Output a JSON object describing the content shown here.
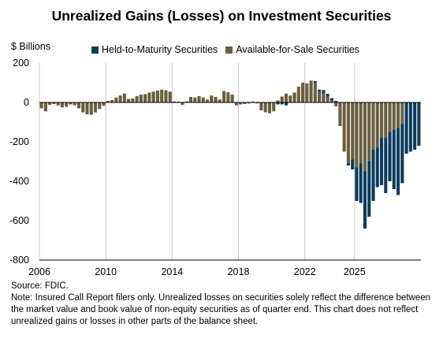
{
  "chart_data": {
    "type": "bar",
    "stacked": true,
    "title": "Unrealized Gains (Losses) on Investment Securities",
    "ylabel": "$ Billions",
    "ylim": [
      -800,
      200
    ],
    "yticks": [
      200,
      0,
      -200,
      -400,
      -600,
      -800
    ],
    "xticks": [
      "2006",
      "2010",
      "2014",
      "2018",
      "2022",
      "2025"
    ],
    "grid": "vertical",
    "legend_position": "top",
    "series": [
      {
        "name": "Held-to-Maturity Securities",
        "color": "#0b3c5d",
        "values": [
          0,
          0,
          0,
          0,
          0,
          0,
          0,
          0,
          0,
          0,
          0,
          0,
          -1,
          -2,
          -3,
          -2,
          0,
          0,
          0,
          0,
          0,
          0,
          0,
          0,
          0,
          0,
          0,
          0,
          0,
          0,
          0,
          0,
          0,
          0,
          0,
          0,
          0,
          0,
          0,
          0,
          0,
          0,
          0,
          0,
          0,
          0,
          0,
          0,
          0,
          0,
          0,
          0,
          0,
          0,
          0,
          0,
          0,
          -10,
          -10,
          -15,
          0,
          0,
          0,
          0,
          2,
          5,
          8,
          10,
          18,
          14,
          12,
          8,
          0,
          0,
          -10,
          -50,
          -170,
          -200,
          -290,
          -280,
          -260,
          -200,
          -240,
          -280,
          -250,
          -300,
          -340,
          -300,
          -260,
          -250,
          -240,
          -220
        ]
      },
      {
        "name": "Available-for-Sale Securities",
        "color": "#6b5e3e",
        "values": [
          -30,
          -45,
          -12,
          -8,
          -15,
          -25,
          -22,
          -10,
          -15,
          -30,
          -50,
          -60,
          -60,
          -48,
          -30,
          -15,
          8,
          12,
          25,
          35,
          45,
          18,
          20,
          32,
          40,
          42,
          50,
          55,
          60,
          65,
          62,
          55,
          5,
          5,
          -12,
          5,
          28,
          25,
          32,
          25,
          15,
          35,
          28,
          15,
          58,
          52,
          40,
          -15,
          -10,
          -8,
          -5,
          5,
          -5,
          -40,
          -50,
          -55,
          -45,
          10,
          30,
          45,
          35,
          50,
          80,
          100,
          95,
          105,
          100,
          55,
          45,
          30,
          10,
          -20,
          -120,
          -250,
          -310,
          -290,
          -330,
          -310,
          -350,
          -300,
          -240,
          -230,
          -180,
          -180,
          -150,
          -140,
          -130,
          -110
        ]
      }
    ]
  },
  "source": "Source: FDIC.",
  "note": "Note: Insured Call Report filers only. Unrealized losses on securities solely reflect the difference between the market value and book value of non-equity securities as of quarter end. This chart does not reflect unrealized gains or losses in other parts of the balance sheet."
}
